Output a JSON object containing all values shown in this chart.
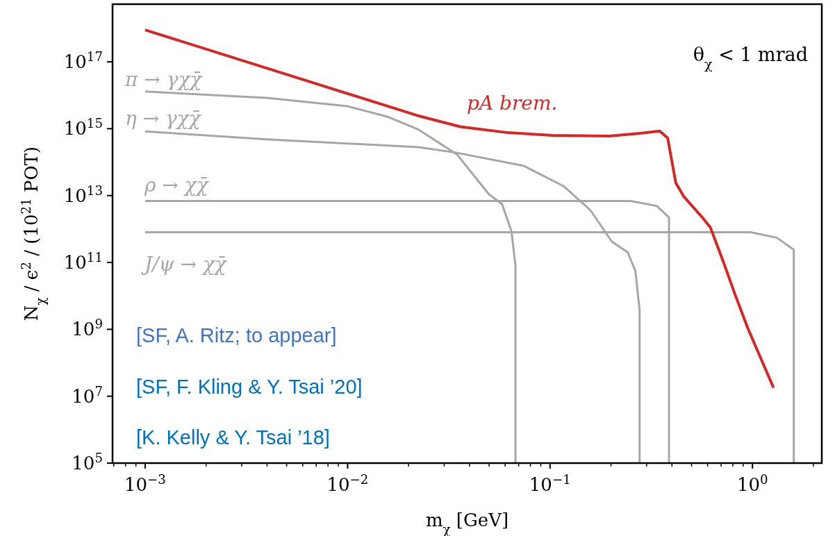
{
  "chart_data": {
    "type": "line",
    "xlabel": "m$_{χ}$ [GeV]",
    "ylabel": "N$_{χ}$ / ϵ$^{2}$ / (10$^{21}$ POT)",
    "log": "xy",
    "grid": false,
    "marker": "none",
    "line_style": "solid",
    "xlim": [
      0.00069,
      2.2
    ],
    "ylim": [
      100000.0,
      5.3e+18
    ],
    "xticks": [
      {
        "value": 0.001,
        "label": "10$^{−3}$"
      },
      {
        "value": 0.01,
        "label": "10$^{−2}$"
      },
      {
        "value": 0.1,
        "label": "10$^{−1}$"
      },
      {
        "value": 1,
        "label": "10$^{0}$"
      },
      {
        "value": 0.0007,
        "label": null
      },
      {
        "value": 0.0008,
        "label": null
      },
      {
        "value": 0.0009,
        "label": null
      },
      {
        "value": 0.002,
        "label": null
      },
      {
        "value": 0.003,
        "label": null
      },
      {
        "value": 0.004,
        "label": null
      },
      {
        "value": 0.005,
        "label": null
      },
      {
        "value": 0.006,
        "label": null
      },
      {
        "value": 0.007,
        "label": null
      },
      {
        "value": 0.008,
        "label": null
      },
      {
        "value": 0.009,
        "label": null
      },
      {
        "value": 0.02,
        "label": null
      },
      {
        "value": 0.03,
        "label": null
      },
      {
        "value": 0.04,
        "label": null
      },
      {
        "value": 0.05,
        "label": null
      },
      {
        "value": 0.06,
        "label": null
      },
      {
        "value": 0.07,
        "label": null
      },
      {
        "value": 0.08,
        "label": null
      },
      {
        "value": 0.09,
        "label": null
      },
      {
        "value": 0.2,
        "label": null
      },
      {
        "value": 0.3,
        "label": null
      },
      {
        "value": 0.4,
        "label": null
      },
      {
        "value": 0.5,
        "label": null
      },
      {
        "value": 0.6,
        "label": null
      },
      {
        "value": 0.7,
        "label": null
      },
      {
        "value": 0.8,
        "label": null
      },
      {
        "value": 0.9,
        "label": null
      },
      {
        "value": 2,
        "label": null
      }
    ],
    "yticks": [
      {
        "value": 100000.0,
        "label": "10$^{5}$"
      },
      {
        "value": 10000000.0,
        "label": "10$^{7}$"
      },
      {
        "value": 1000000000.0,
        "label": "10$^{9}$"
      },
      {
        "value": 100000000000.0,
        "label": "10$^{11}$"
      },
      {
        "value": 10000000000000.0,
        "label": "10$^{13}$"
      },
      {
        "value": 1000000000000000.0,
        "label": "10$^{15}$"
      },
      {
        "value": 1e+17,
        "label": "10$^{17}$"
      }
    ],
    "series": [
      {
        "name": "pA brem.",
        "color": "#d62728",
        "x": [
          0.001,
          0.022,
          0.036,
          0.062,
          0.103,
          0.196,
          0.273,
          0.348,
          0.381,
          0.418,
          0.459,
          0.566,
          0.62,
          0.72,
          0.82,
          0.95,
          1.27
        ],
        "values": [
          9e+17,
          2500000000000000.0,
          1150000000000000.0,
          760000000000000.0,
          630000000000000.0,
          600000000000000.0,
          720000000000000.0,
          850000000000000.0,
          530000000000000.0,
          24000000000000.0,
          9200000000000.0,
          2200000000000.0,
          1100000000000.0,
          100000000000.0,
          11000000000.0,
          1050000000.0,
          18000000.0
        ]
      },
      {
        "name": "π → γχχ̄",
        "color": "#a6a6a6",
        "x": [
          0.001,
          0.004,
          0.01,
          0.0157,
          0.0225,
          0.0347,
          0.0499,
          0.058,
          0.0645,
          0.0675,
          0.0675
        ],
        "values": [
          1.3e+16,
          8300000000000000.0,
          4700000000000000.0,
          2300000000000000.0,
          930000000000000.0,
          170000000000000.0,
          11000000000000.0,
          5500000000000.0,
          850000000000.0,
          80000000000.0,
          100000.0
        ]
      },
      {
        "name": "η → γχχ̄",
        "color": "#a6a6a6",
        "x": [
          0.001,
          0.004,
          0.0225,
          0.0347,
          0.074,
          0.117,
          0.158,
          0.202,
          0.242,
          0.264,
          0.277,
          0.277
        ],
        "values": [
          830000000000000.0,
          480000000000000.0,
          280000000000000.0,
          190000000000000.0,
          78000000000000.0,
          19000000000000.0,
          3700000000000.0,
          420000000000.0,
          200000000000.0,
          56000000000.0,
          3700000000.0,
          100000.0
        ]
      },
      {
        "name": "ρ → χχ̄",
        "color": "#a6a6a6",
        "x": [
          0.001,
          0.25,
          0.337,
          0.387,
          0.387
        ],
        "values": [
          6900000000000.0,
          6900000000000.0,
          4900000000000.0,
          2200000000000.0,
          100000.0
        ]
      },
      {
        "name": "J/ψ → χχ̄",
        "color": "#a6a6a6",
        "x": [
          0.001,
          0.98,
          1.32,
          1.6,
          1.6
        ],
        "values": [
          800000000000.0,
          800000000000.0,
          550000000000.0,
          240000000000.0,
          100000.0
        ]
      }
    ],
    "annotations": [
      "θ$_{χ}$ < 1 mrad",
      "[SF, A. Ritz; to appear]",
      "[SF, F. Kling & Y. Tsai ’20]",
      "[K. Kelly & Y. Tsai ’18]"
    ]
  }
}
